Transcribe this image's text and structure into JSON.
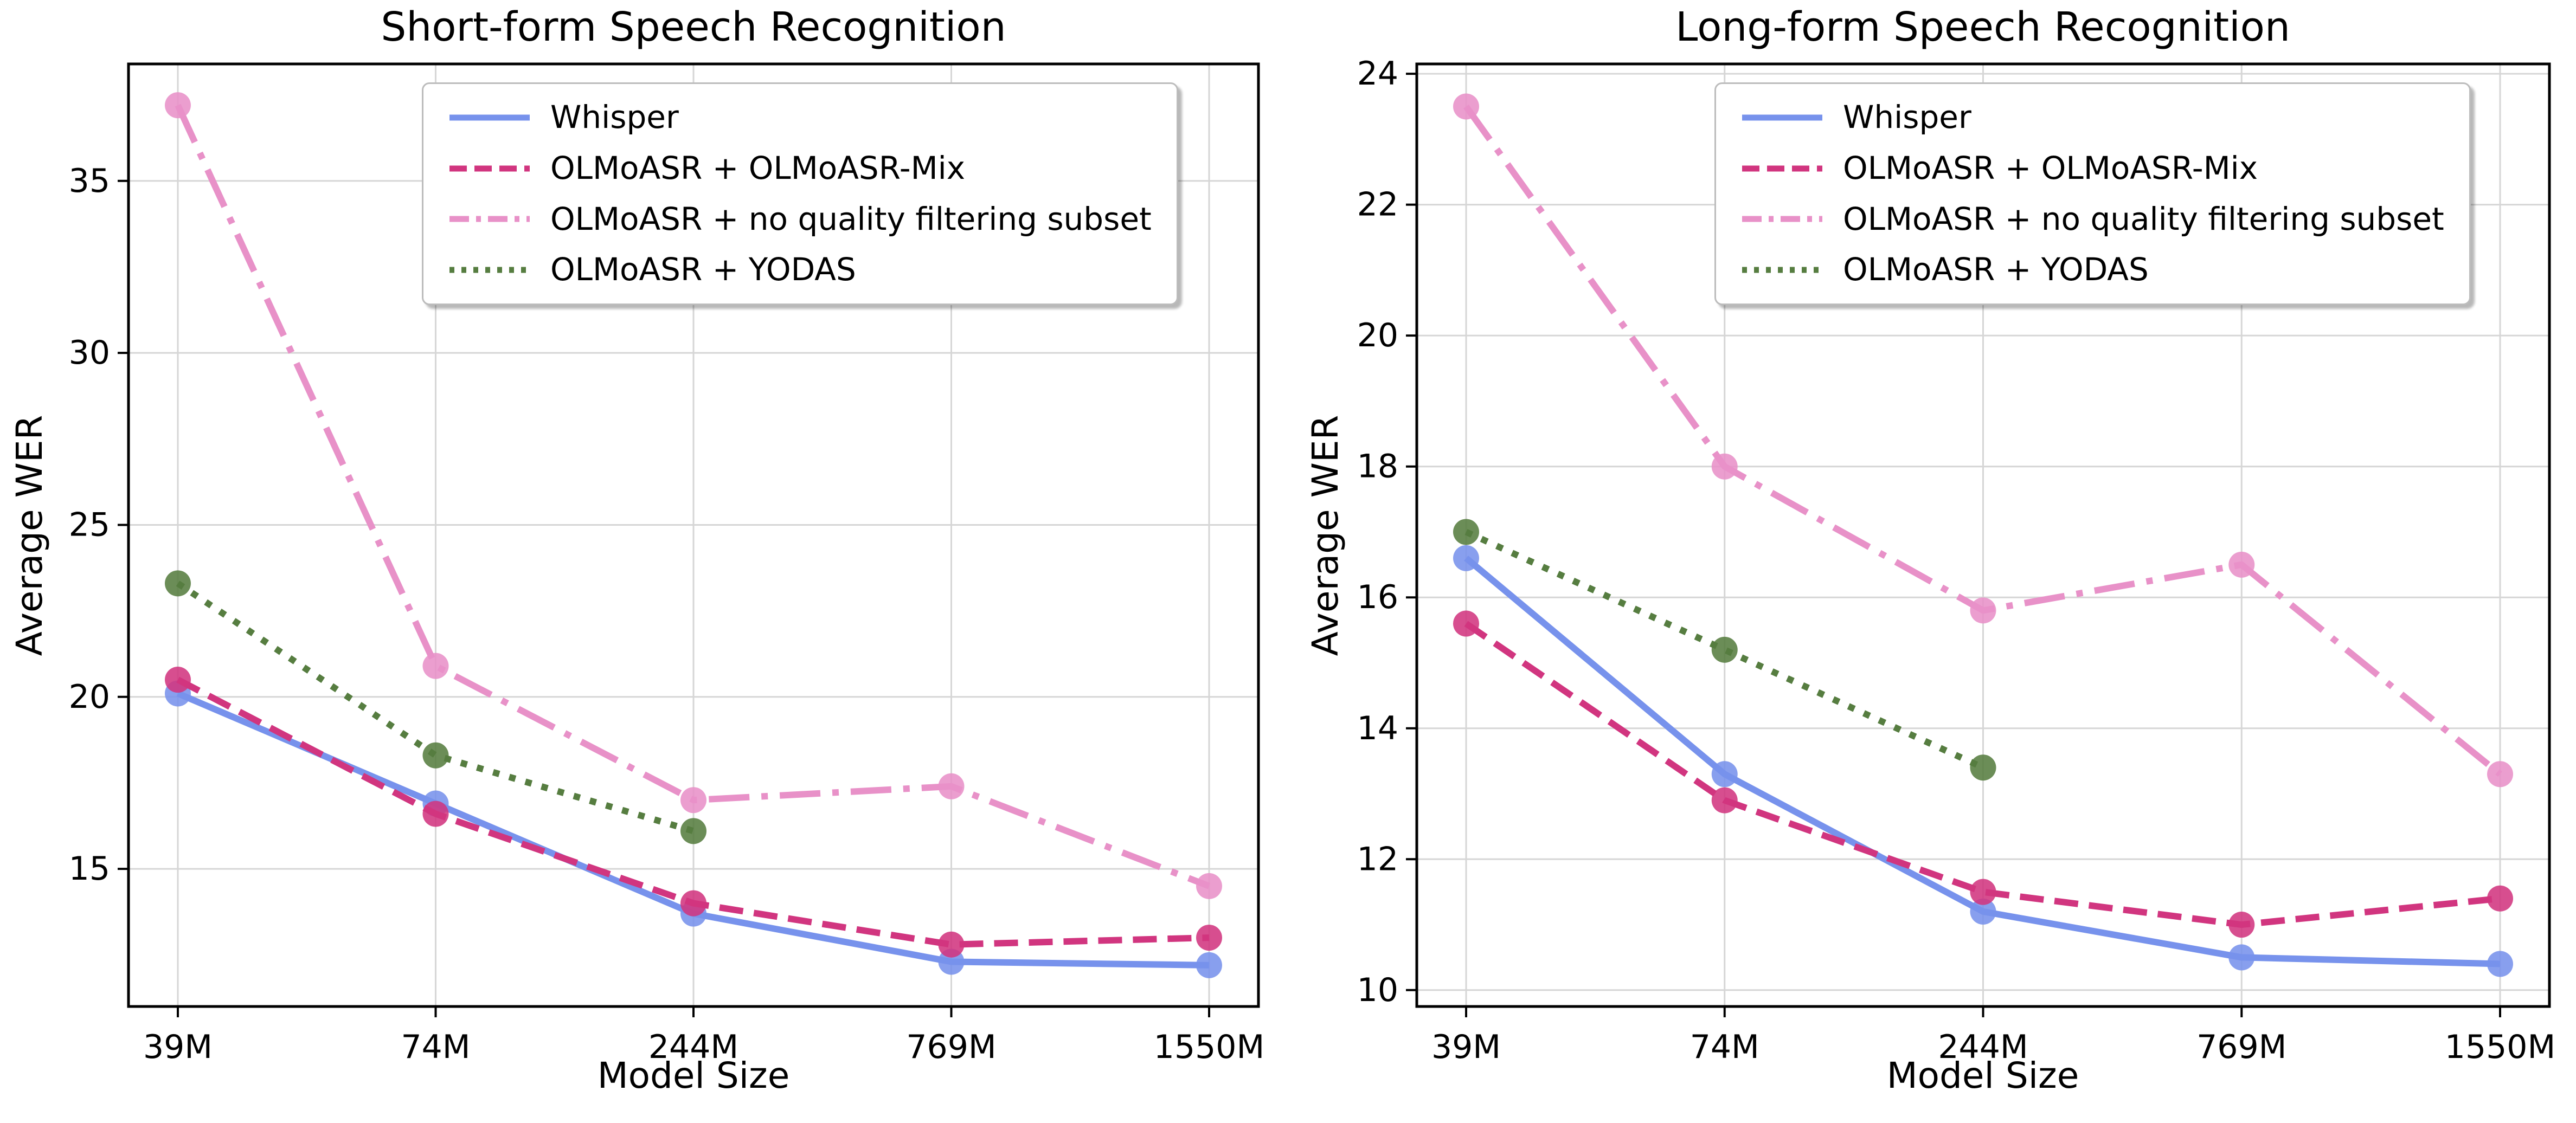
{
  "page": {
    "background": "#ffffff"
  },
  "chart_data": [
    {
      "type": "line",
      "title": "Short-form Speech Recognition",
      "xlabel": "Model Size",
      "ylabel": "Average WER",
      "categories": [
        "39M",
        "74M",
        "244M",
        "769M",
        "1550M"
      ],
      "yticks": [
        15,
        20,
        25,
        30,
        35
      ],
      "ylim": [
        11.0,
        38.4
      ],
      "grid": true,
      "legend_position": "upper left inside",
      "series": [
        {
          "name": "Whisper",
          "color": "#7792ec",
          "linestyle": "solid",
          "values": [
            20.1,
            16.9,
            13.7,
            12.3,
            12.2
          ]
        },
        {
          "name": "OLMoASR + OLMoASR-Mix",
          "color": "#d1357f",
          "linestyle": "dashed",
          "values": [
            20.5,
            16.6,
            14.0,
            12.8,
            13.0
          ]
        },
        {
          "name": "OLMoASR + no quality filtering subset",
          "color": "#e891c8",
          "linestyle": "dashdot",
          "values": [
            37.2,
            20.9,
            17.0,
            17.4,
            14.5
          ]
        },
        {
          "name": "OLMoASR + YODAS",
          "color": "#567d40",
          "linestyle": "dotted",
          "values": [
            23.3,
            18.3,
            16.1,
            null,
            null
          ]
        }
      ]
    },
    {
      "type": "line",
      "title": "Long-form Speech Recognition",
      "xlabel": "Model Size",
      "ylabel": "Average WER",
      "categories": [
        "39M",
        "74M",
        "244M",
        "769M",
        "1550M"
      ],
      "yticks": [
        10,
        12,
        14,
        16,
        18,
        20,
        22,
        24
      ],
      "ylim": [
        9.75,
        24.15
      ],
      "grid": true,
      "legend_position": "upper right inside",
      "series": [
        {
          "name": "Whisper",
          "color": "#7792ec",
          "linestyle": "solid",
          "values": [
            16.6,
            13.3,
            11.2,
            10.5,
            10.4
          ]
        },
        {
          "name": "OLMoASR + OLMoASR-Mix",
          "color": "#d1357f",
          "linestyle": "dashed",
          "values": [
            15.6,
            12.9,
            11.5,
            11.0,
            11.4
          ]
        },
        {
          "name": "OLMoASR + no quality filtering subset",
          "color": "#e891c8",
          "linestyle": "dashdot",
          "values": [
            23.5,
            18.0,
            15.8,
            16.5,
            13.3
          ]
        },
        {
          "name": "OLMoASR + YODAS",
          "color": "#567d40",
          "linestyle": "dotted",
          "values": [
            17.0,
            15.2,
            13.4,
            null,
            null
          ]
        }
      ]
    }
  ]
}
